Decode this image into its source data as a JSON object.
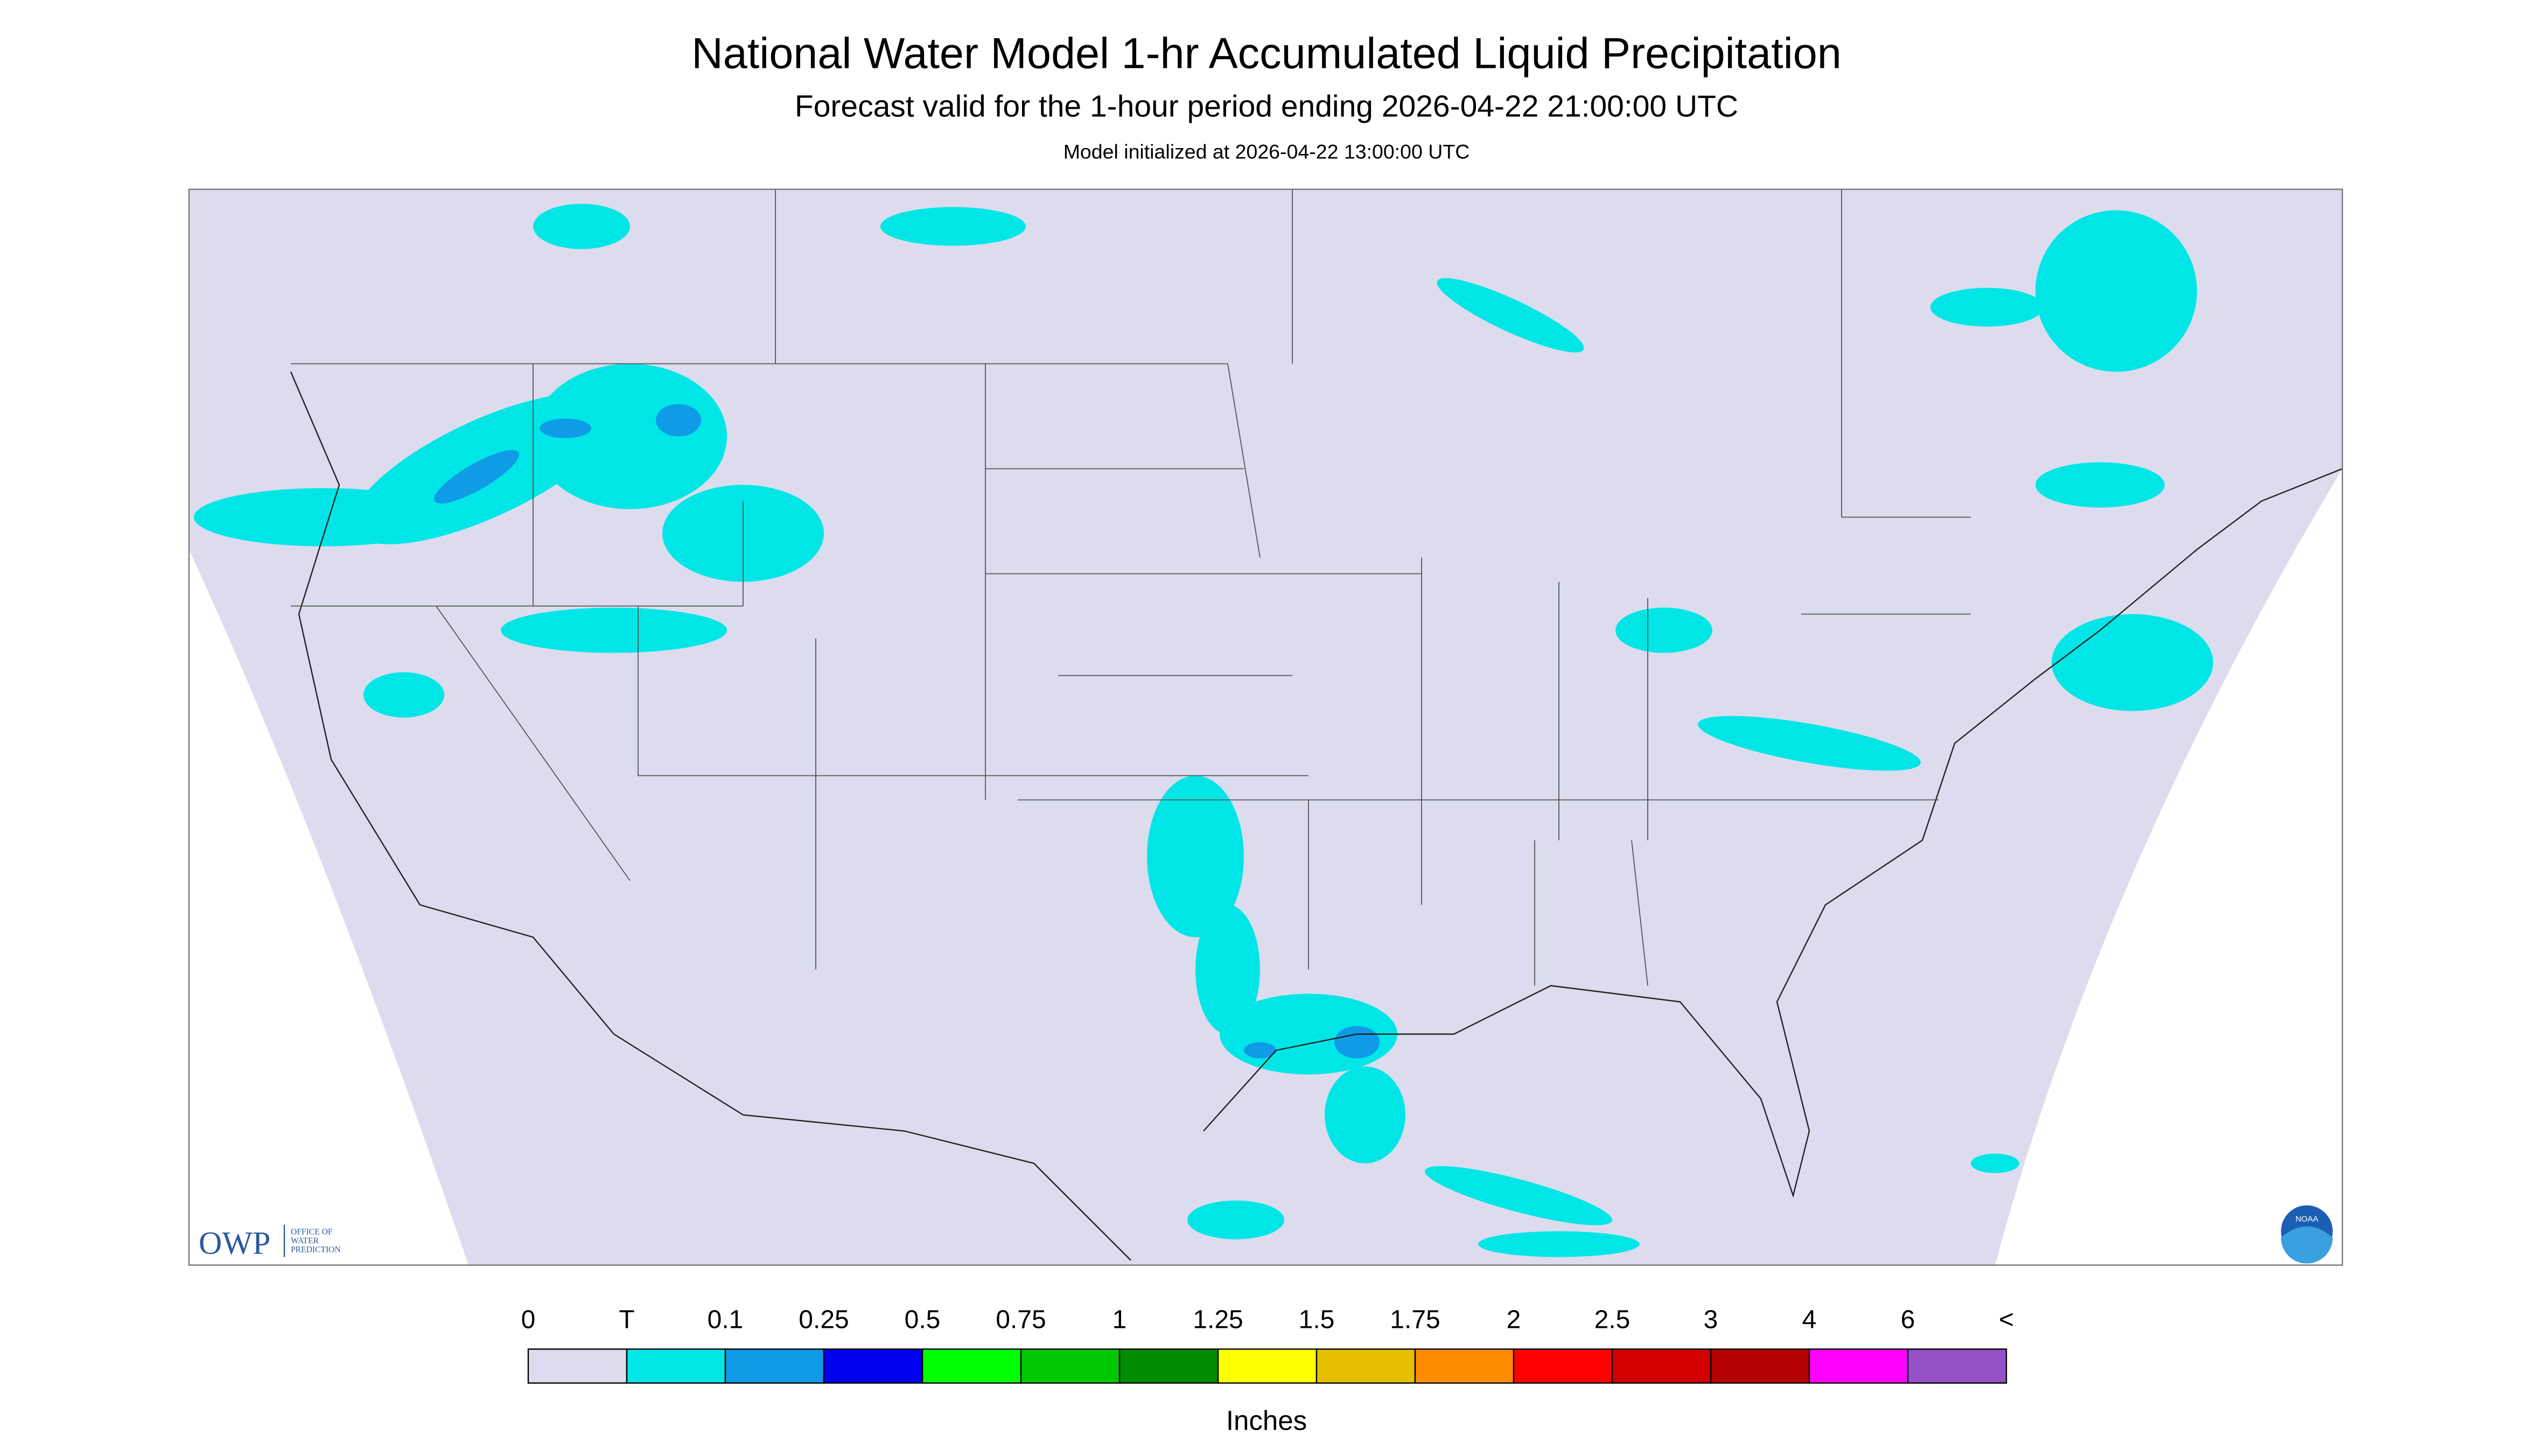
{
  "header": {
    "title": "National Water Model 1-hr Accumulated Liquid Precipitation",
    "subtitle": "Forecast valid for the 1-hour period ending 2026-04-22 21:00:00 UTC",
    "note": "Model initialized at 2026-04-22 13:00:00 UTC"
  },
  "legend": {
    "labels": [
      "0",
      "T",
      "0.1",
      "0.25",
      "0.5",
      "0.75",
      "1",
      "1.25",
      "1.5",
      "1.75",
      "2",
      "2.5",
      "3",
      "4",
      "6",
      "<"
    ],
    "colors": [
      "#dcdcee",
      "#00e6e6",
      "#0f9be6",
      "#0000f0",
      "#00ff00",
      "#00c800",
      "#008c00",
      "#ffff00",
      "#e6c000",
      "#ff8c00",
      "#ff0000",
      "#d20000",
      "#b40000",
      "#ff00ff",
      "#9650c8"
    ],
    "units": "Inches"
  },
  "logos": {
    "owp": "OWP",
    "owp_lines": [
      "OFFICE OF",
      "WATER",
      "PREDICTION"
    ],
    "noaa": "NOAA"
  }
}
